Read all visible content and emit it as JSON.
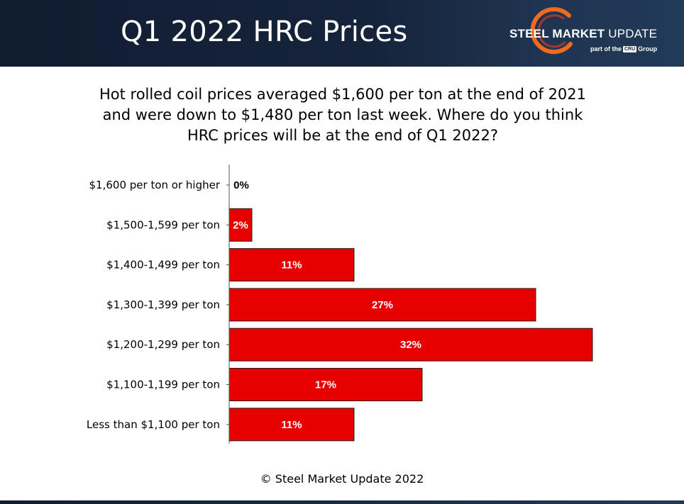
{
  "header": {
    "title": "Q1 2022 HRC Prices",
    "logo": {
      "name_bold": "STEEL MARKET",
      "name_light": "UPDATE",
      "sub_prefix": "part of the",
      "sub_badge": "CRU",
      "sub_suffix": "Group"
    }
  },
  "question": "Hot rolled coil prices averaged $1,600 per ton at the end of 2021 and were down to $1,480 per ton last week. Where do you think HRC prices will be at the end of Q1 2022?",
  "footer": "© Steel Market Update 2022",
  "colors": {
    "bar": "#e60000",
    "bar_border": "#222222",
    "header_bg": "#16243b",
    "logo_arc": "#f06a1f"
  },
  "chart_data": {
    "type": "bar",
    "orientation": "horizontal",
    "title": "",
    "xlabel": "",
    "ylabel": "",
    "categories": [
      "$1,600 per ton or higher",
      "$1,500-1,599 per ton",
      "$1,400-1,499 per ton",
      "$1,300-1,399 per ton",
      "$1,200-1,299 per ton",
      "$1,100-1,199 per ton",
      "Less than $1,100 per ton"
    ],
    "values": [
      0,
      2,
      11,
      27,
      32,
      17,
      11
    ],
    "value_labels": [
      "0%",
      "2%",
      "11%",
      "27%",
      "32%",
      "17%",
      "11%"
    ],
    "unit": "%",
    "xlim": [
      0,
      32
    ],
    "grid": false,
    "legend": "none"
  }
}
